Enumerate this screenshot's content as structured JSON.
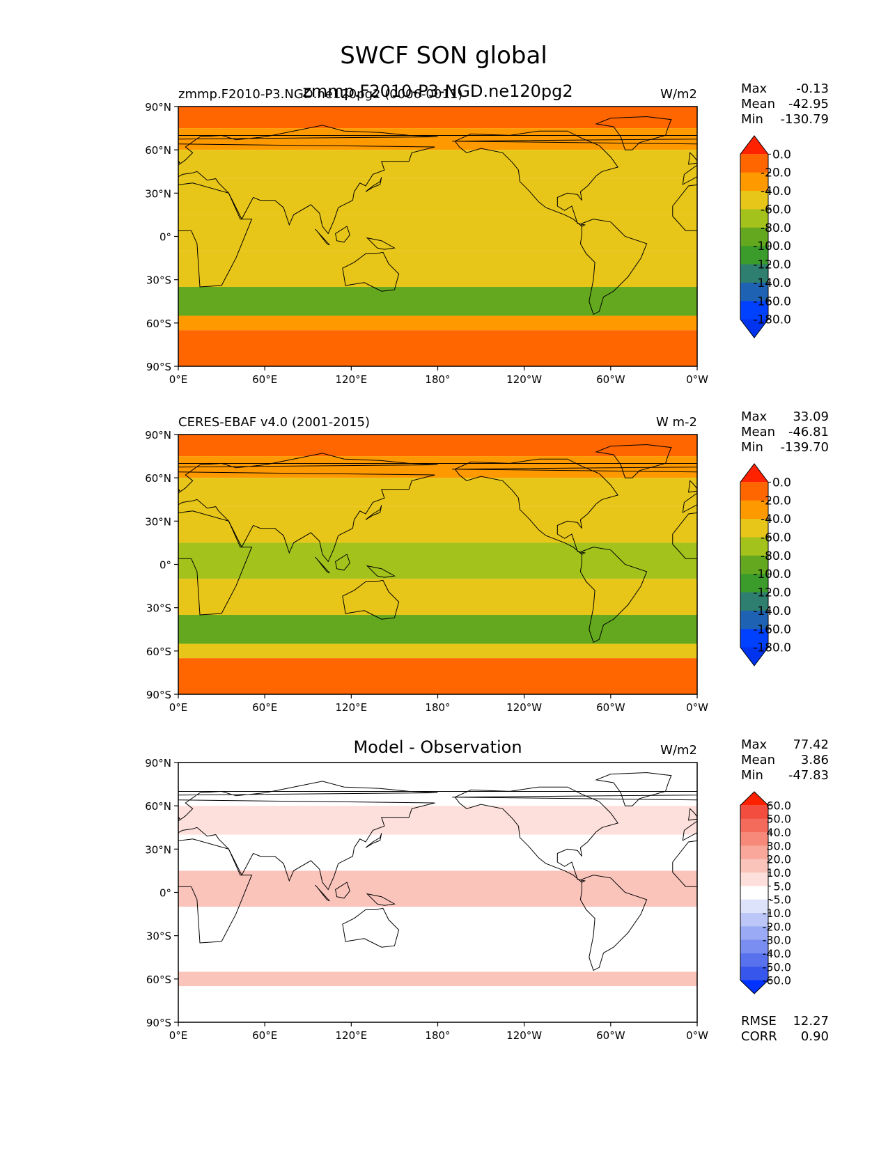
{
  "figure": {
    "title": "SWCF SON global"
  },
  "map": {
    "lat_ticks": [
      "90°N",
      "60°N",
      "30°N",
      "0°",
      "30°S",
      "60°S",
      "90°S"
    ],
    "lon_ticks": [
      "0°E",
      "60°E",
      "120°E",
      "180°",
      "120°W",
      "60°W",
      "0°W"
    ],
    "ocean_color": "#ffffff"
  },
  "chart_data": [
    {
      "type": "heatmap",
      "panel": "test",
      "title_left": "zmmp.F2010-P3.NGD.ne120pg2 (0006-0011)",
      "title_center": "zmmp.F2010-P3-NGD.ne120pg2",
      "units": "W/m2",
      "stats": [
        {
          "label": "Max",
          "value": "-0.13"
        },
        {
          "label": "Mean",
          "value": "-42.95"
        },
        {
          "label": "Min",
          "value": "-130.79"
        }
      ],
      "colorbar": {
        "levels": [
          "0.0",
          "-20.0",
          "-40.0",
          "-60.0",
          "-80.0",
          "-100.0",
          "-120.0",
          "-140.0",
          "-160.0",
          "-180.0"
        ],
        "colors": [
          "#ff2200",
          "#ff6600",
          "#ff9900",
          "#e8c619",
          "#a4c21c",
          "#63a81e",
          "#3b9c2b",
          "#2e7f6f",
          "#1e63b3",
          "#0040ff",
          "#0033ee"
        ]
      },
      "zonal_band_values": [
        {
          "lat": [
            75,
            90
          ],
          "value": -15
        },
        {
          "lat": [
            60,
            75
          ],
          "value": -30
        },
        {
          "lat": [
            40,
            60
          ],
          "value": -45
        },
        {
          "lat": [
            15,
            40
          ],
          "value": -40
        },
        {
          "lat": [
            -10,
            15
          ],
          "value": -55
        },
        {
          "lat": [
            -35,
            -10
          ],
          "value": -45
        },
        {
          "lat": [
            -55,
            -35
          ],
          "value": -85
        },
        {
          "lat": [
            -65,
            -55
          ],
          "value": -30
        },
        {
          "lat": [
            -90,
            -65
          ],
          "value": -10
        }
      ]
    },
    {
      "type": "heatmap",
      "panel": "reference",
      "title_left": "CERES-EBAF v4.0 (2001-2015)",
      "title_center": "",
      "units": "W m-2",
      "stats": [
        {
          "label": "Max",
          "value": "33.09"
        },
        {
          "label": "Mean",
          "value": "-46.81"
        },
        {
          "label": "Min",
          "value": "-139.70"
        }
      ],
      "colorbar": {
        "levels": [
          "0.0",
          "-20.0",
          "-40.0",
          "-60.0",
          "-80.0",
          "-100.0",
          "-120.0",
          "-140.0",
          "-160.0",
          "-180.0"
        ],
        "colors": [
          "#ff2200",
          "#ff6600",
          "#ff9900",
          "#e8c619",
          "#a4c21c",
          "#63a81e",
          "#3b9c2b",
          "#2e7f6f",
          "#1e63b3",
          "#0040ff",
          "#0033ee"
        ]
      },
      "zonal_band_values": [
        {
          "lat": [
            75,
            90
          ],
          "value": -15
        },
        {
          "lat": [
            60,
            75
          ],
          "value": -30
        },
        {
          "lat": [
            40,
            60
          ],
          "value": -45
        },
        {
          "lat": [
            15,
            40
          ],
          "value": -45
        },
        {
          "lat": [
            -10,
            15
          ],
          "value": -60
        },
        {
          "lat": [
            -35,
            -10
          ],
          "value": -50
        },
        {
          "lat": [
            -55,
            -35
          ],
          "value": -90
        },
        {
          "lat": [
            -65,
            -55
          ],
          "value": -40
        },
        {
          "lat": [
            -90,
            -65
          ],
          "value": -10
        }
      ]
    },
    {
      "type": "heatmap",
      "panel": "difference",
      "title_left": "",
      "title_center": "Model - Observation",
      "units": "W/m2",
      "stats": [
        {
          "label": "Max",
          "value": "77.42"
        },
        {
          "label": "Mean",
          "value": "3.86"
        },
        {
          "label": "Min",
          "value": "-47.83"
        }
      ],
      "extra_stats": [
        {
          "label": "RMSE",
          "value": "12.27"
        },
        {
          "label": "CORR",
          "value": "0.90"
        }
      ],
      "colorbar": {
        "levels": [
          "60.0",
          "50.0",
          "40.0",
          "30.0",
          "20.0",
          "10.0",
          "5.0",
          "-5.0",
          "-10.0",
          "-20.0",
          "-30.0",
          "-40.0",
          "-50.0",
          "-60.0"
        ],
        "colors": [
          "#ff2200",
          "#f24d3f",
          "#f46a5b",
          "#f68979",
          "#f8a79a",
          "#fac4bb",
          "#fde0dc",
          "#ffffff",
          "#dde3fb",
          "#bcc7f8",
          "#9aaaf4",
          "#7a8ef1",
          "#5872ee",
          "#3756eb",
          "#0033ff"
        ]
      },
      "zonal_band_values": [
        {
          "lat": [
            75,
            90
          ],
          "value": 0
        },
        {
          "lat": [
            60,
            75
          ],
          "value": 5
        },
        {
          "lat": [
            40,
            60
          ],
          "value": 8
        },
        {
          "lat": [
            15,
            40
          ],
          "value": 3
        },
        {
          "lat": [
            -10,
            15
          ],
          "value": 12
        },
        {
          "lat": [
            -35,
            -10
          ],
          "value": 4
        },
        {
          "lat": [
            -55,
            -35
          ],
          "value": 0
        },
        {
          "lat": [
            -65,
            -55
          ],
          "value": 15
        },
        {
          "lat": [
            -90,
            -65
          ],
          "value": 2
        }
      ]
    }
  ]
}
